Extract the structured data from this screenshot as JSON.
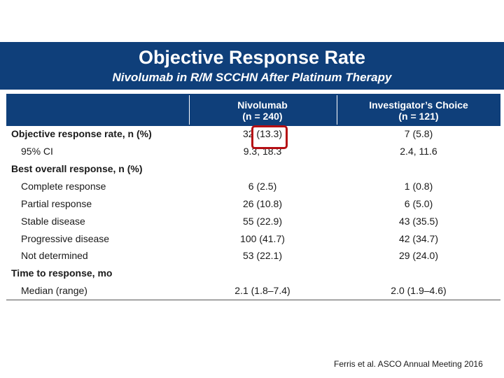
{
  "header": {
    "title": "Objective Response Rate",
    "subtitle": "Nivolumab in R/M SCCHN After Platinum Therapy"
  },
  "table": {
    "columns": [
      {
        "line1": "Nivolumab",
        "line2": "(n = 240)"
      },
      {
        "line1": "Investigator’s Choice",
        "line2": "(n = 121)"
      }
    ],
    "rows": [
      {
        "label": "Objective response rate, n (%)",
        "bold": true,
        "indent": false,
        "nivolumab": "32 (13.3)",
        "investigator": "7 (5.8)"
      },
      {
        "label": "95% CI",
        "bold": false,
        "indent": true,
        "nivolumab": "9.3, 18.3",
        "investigator": "2.4, 11.6"
      },
      {
        "label": "Best overall response, n (%)",
        "bold": true,
        "indent": false,
        "nivolumab": "",
        "investigator": ""
      },
      {
        "label": "Complete response",
        "bold": false,
        "indent": true,
        "nivolumab": "6 (2.5)",
        "investigator": "1 (0.8)"
      },
      {
        "label": "Partial response",
        "bold": false,
        "indent": true,
        "nivolumab": "26 (10.8)",
        "investigator": "6 (5.0)"
      },
      {
        "label": "Stable disease",
        "bold": false,
        "indent": true,
        "nivolumab": "55 (22.9)",
        "investigator": "43 (35.5)"
      },
      {
        "label": "Progressive disease",
        "bold": false,
        "indent": true,
        "nivolumab": "100 (41.7)",
        "investigator": "42 (34.7)"
      },
      {
        "label": "Not determined",
        "bold": false,
        "indent": true,
        "nivolumab": "53 (22.1)",
        "investigator": "29 (24.0)"
      },
      {
        "label": "Time to response, mo",
        "bold": true,
        "indent": false,
        "nivolumab": "",
        "investigator": ""
      },
      {
        "label": "Median (range)",
        "bold": false,
        "indent": true,
        "nivolumab": "2.1 (1.8–7.4)",
        "investigator": "2.0 (1.9–4.6)"
      }
    ]
  },
  "footnote": "Ferris et al. ASCO Annual Meeting 2016",
  "colors": {
    "banner": "#0f3f7a",
    "highlight": "#b50f14"
  }
}
